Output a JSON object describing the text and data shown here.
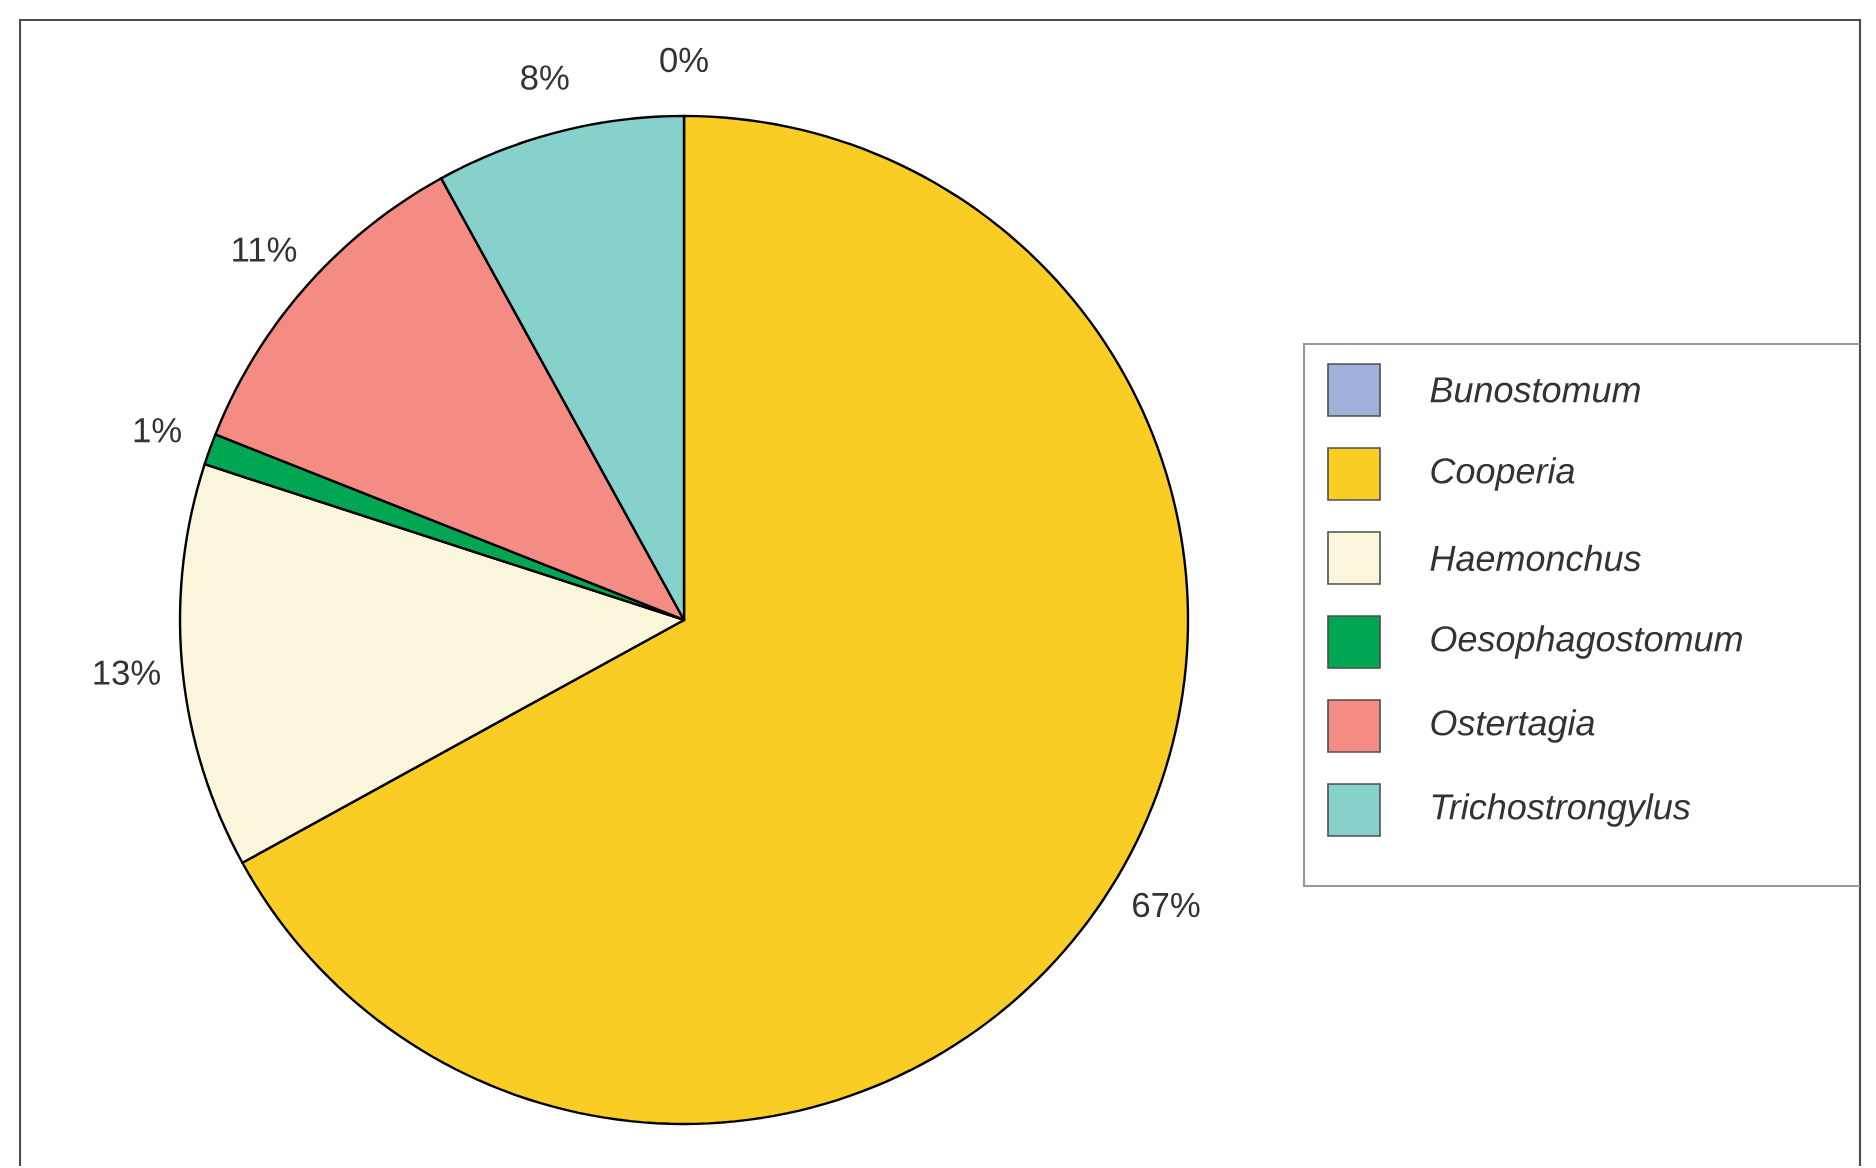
{
  "chart_data": {
    "type": "pie",
    "categories": [
      "Bunostomum",
      "Cooperia",
      "Haemonchus",
      "Oesophagostomum",
      "Ostertagia",
      "Trichostrongylus"
    ],
    "values": [
      0,
      67,
      13,
      1,
      11,
      8
    ],
    "value_labels": [
      "0%",
      "67%",
      "13%",
      "1%",
      "11%",
      "8%"
    ],
    "colors": [
      "#9fb0da",
      "#f9cd24",
      "#faf6dc",
      "#00a651",
      "#f48c84",
      "#86d1cc"
    ],
    "legend": "right"
  }
}
